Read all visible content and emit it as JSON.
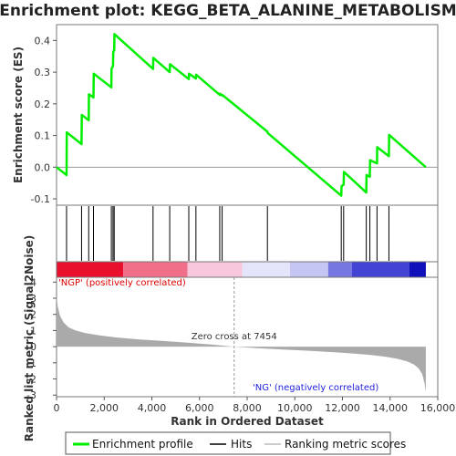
{
  "colors": {
    "es_line": "#00ee00",
    "hits": "#000000",
    "metric_fill": "#aaaaaa",
    "zero_line": "#999999",
    "positive_label": "#dd0000",
    "negative_label": "#2222dd"
  },
  "chart_data": [
    {
      "type": "line",
      "title": "Enrichment plot: KEGG_BETA_ALANINE_METABOLISM",
      "ylabel": "Enrichment score (ES)",
      "xlim": [
        0,
        16000
      ],
      "ylim": [
        -0.12,
        0.45
      ],
      "yticks": [
        "-0.1",
        "0.0",
        "0.1",
        "0.2",
        "0.3",
        "0.4"
      ],
      "ytick_values": [
        -0.1,
        0.0,
        0.1,
        0.2,
        0.3,
        0.4
      ],
      "series": [
        {
          "name": "Enrichment profile",
          "x": [
            0,
            420,
            430,
            1050,
            1060,
            1350,
            1360,
            1550,
            1560,
            2300,
            2310,
            2370,
            2380,
            2420,
            2430,
            4050,
            4060,
            4750,
            4760,
            5550,
            5560,
            5850,
            5860,
            6850,
            6860,
            6950,
            6960,
            8850,
            8860,
            11950,
            11960,
            12050,
            12060,
            13000,
            13010,
            13150,
            13160,
            13450,
            13460,
            13950,
            13960,
            15500
          ],
          "y": [
            0.0,
            -0.025,
            0.11,
            0.073,
            0.165,
            0.148,
            0.23,
            0.22,
            0.295,
            0.252,
            0.31,
            0.32,
            0.365,
            0.368,
            0.42,
            0.31,
            0.345,
            0.3,
            0.325,
            0.278,
            0.295,
            0.28,
            0.292,
            0.228,
            0.232,
            0.226,
            0.228,
            0.112,
            0.108,
            -0.09,
            -0.06,
            -0.055,
            -0.015,
            -0.08,
            -0.025,
            -0.03,
            0.022,
            0.012,
            0.063,
            0.035,
            0.102,
            0.0
          ]
        }
      ],
      "grid": false
    },
    {
      "type": "scatter",
      "series": [
        {
          "name": "Hits",
          "x": [
            420,
            1050,
            1350,
            1550,
            2300,
            2370,
            2420,
            4050,
            4750,
            5550,
            5850,
            6850,
            6950,
            8850,
            11950,
            12050,
            13000,
            13150,
            13450,
            13950
          ]
        }
      ]
    },
    {
      "type": "area",
      "xlabel": "Rank in Ordered Dataset",
      "ylabel": "Ranked list metric (Signal2Noise)",
      "xlim": [
        0,
        16000
      ],
      "ylim": [
        -3.1,
        4.3
      ],
      "xticks": [
        "0",
        "2,000",
        "4,000",
        "6,000",
        "8,000",
        "10,000",
        "12,000",
        "14,000",
        "16,000"
      ],
      "xtick_values": [
        0,
        2000,
        4000,
        6000,
        8000,
        10000,
        12000,
        14000,
        16000
      ],
      "yticks": [
        "-3",
        "-2",
        "-1",
        "0",
        "1",
        "2",
        "3",
        "4"
      ],
      "ytick_values": [
        -3,
        -2,
        -1,
        0,
        1,
        2,
        3,
        4
      ],
      "series": [
        {
          "name": "Ranking metric scores",
          "x": [
            0,
            50,
            150,
            300,
            500,
            800,
            1200,
            1800,
            2500,
            3500,
            4500,
            5500,
            6500,
            7454,
            8500,
            9500,
            10500,
            11500,
            12500,
            13200,
            13800,
            14300,
            14700,
            15000,
            15200,
            15350,
            15450,
            15500
          ],
          "y": [
            3.2,
            2.5,
            1.9,
            1.5,
            1.2,
            1.0,
            0.85,
            0.7,
            0.57,
            0.45,
            0.35,
            0.25,
            0.13,
            0.0,
            -0.1,
            -0.18,
            -0.25,
            -0.33,
            -0.43,
            -0.52,
            -0.62,
            -0.75,
            -0.9,
            -1.1,
            -1.35,
            -1.7,
            -2.3,
            -2.8
          ]
        }
      ],
      "annotations": {
        "zero_cross": "Zero cross at 7454",
        "zero_cross_x": 7454,
        "positive_label": "'NGP' (positively correlated)",
        "negative_label": "'NG' (negatively correlated)"
      },
      "color_band": [
        {
          "x0": 0,
          "x1": 2800,
          "color": "#e8102c"
        },
        {
          "x0": 2800,
          "x1": 5500,
          "color": "#f0708a"
        },
        {
          "x0": 5500,
          "x1": 7800,
          "color": "#f8c6dd"
        },
        {
          "x0": 7800,
          "x1": 9800,
          "color": "#e4e4fa"
        },
        {
          "x0": 9800,
          "x1": 11400,
          "color": "#c6c6f2"
        },
        {
          "x0": 11400,
          "x1": 12400,
          "color": "#7777e2"
        },
        {
          "x0": 12400,
          "x1": 14800,
          "color": "#4444d4"
        },
        {
          "x0": 14800,
          "x1": 15500,
          "color": "#1111bb"
        }
      ]
    }
  ],
  "legend": {
    "items": [
      {
        "label": "Enrichment profile",
        "color": "#00ee00"
      },
      {
        "label": "Hits",
        "color": "#000000"
      },
      {
        "label": "Ranking metric scores",
        "color": "#bbbbbb"
      }
    ]
  }
}
